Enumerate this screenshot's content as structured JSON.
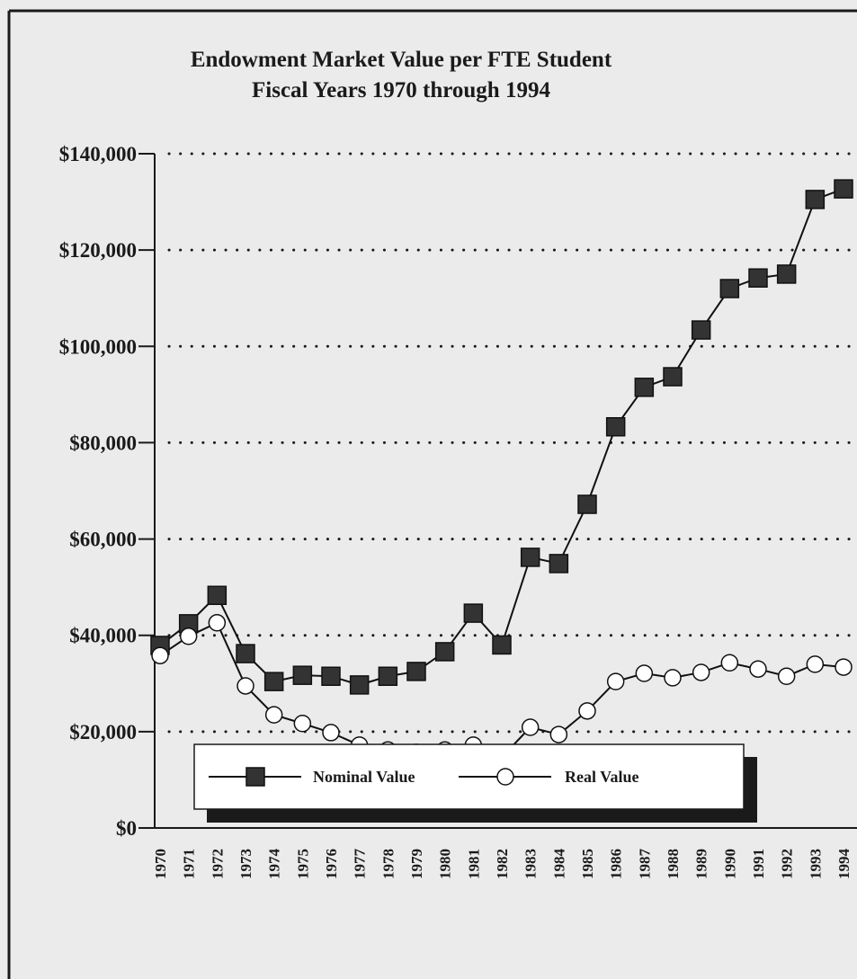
{
  "chart_data": {
    "type": "line",
    "title": "Endowment Market Value per FTE Student",
    "subtitle": "Fiscal Years 1970 through 1994",
    "categories": [
      "1970",
      "1971",
      "1972",
      "1973",
      "1974",
      "1975",
      "1976",
      "1977",
      "1978",
      "1979",
      "1980",
      "1981",
      "1982",
      "1983",
      "1984",
      "1985",
      "1986",
      "1987",
      "1988",
      "1989",
      "1990",
      "1991",
      "1992",
      "1993",
      "1994"
    ],
    "series": [
      {
        "name": "Nominal Value",
        "color": "#333333",
        "marker": "square",
        "values": [
          37900,
          42400,
          48300,
          36200,
          30400,
          31700,
          31500,
          29700,
          31500,
          32500,
          36600,
          44600,
          38000,
          56200,
          54900,
          67200,
          83300,
          91500,
          93700,
          103400,
          112000,
          114200,
          115000,
          130500,
          132700
        ]
      },
      {
        "name": "Real Value",
        "color": "#ffffff",
        "marker": "circle",
        "values": [
          35800,
          39800,
          42600,
          29500,
          23500,
          21700,
          19800,
          17200,
          16200,
          15700,
          16200,
          17200,
          14700,
          20900,
          19400,
          24300,
          30400,
          32100,
          31200,
          32300,
          34300,
          33000,
          31500,
          34000,
          33400
        ]
      }
    ],
    "ylim": [
      0,
      140000
    ],
    "yticks": [
      {
        "value": 0,
        "label": "$0"
      },
      {
        "value": 20000,
        "label": "$20,000"
      },
      {
        "value": 40000,
        "label": "$40,000"
      },
      {
        "value": 60000,
        "label": "$60,000"
      },
      {
        "value": 80000,
        "label": "$80,000"
      },
      {
        "value": 100000,
        "label": "$100,000"
      },
      {
        "value": 120000,
        "label": "$120,000"
      },
      {
        "value": 140000,
        "label": "$140,000"
      }
    ],
    "grid": true,
    "legend": "bottom"
  }
}
